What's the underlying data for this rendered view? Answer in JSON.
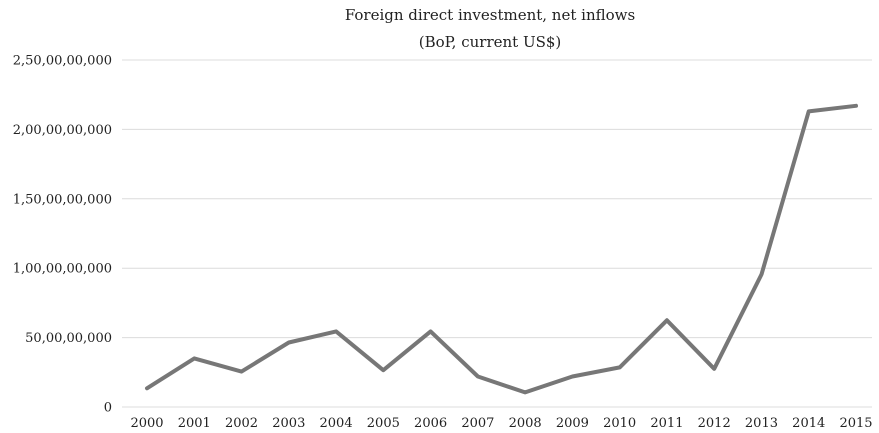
{
  "chart_data": {
    "type": "line",
    "title": "Foreign direct investment, net inflows",
    "subtitle": "(BoP, current US$)",
    "xlabel": "",
    "ylabel": "",
    "categories": [
      "2000",
      "2001",
      "2002",
      "2003",
      "2004",
      "2005",
      "2006",
      "2007",
      "2008",
      "2009",
      "2010",
      "2011",
      "2012",
      "2013",
      "2014",
      "2015"
    ],
    "series": [
      {
        "values": [
          135000000,
          350000000,
          255000000,
          465000000,
          545000000,
          265000000,
          545000000,
          220000000,
          105000000,
          220000000,
          285000000,
          625000000,
          275000000,
          955000000,
          2130000000,
          2170000000
        ],
        "color": "#777777"
      }
    ],
    "ylim": [
      0,
      2500000000
    ],
    "yticks": [
      {
        "value": 0,
        "label": "0"
      },
      {
        "value": 500000000,
        "label": "50,00,00,000"
      },
      {
        "value": 1000000000,
        "label": "1,00,00,00,000"
      },
      {
        "value": 1500000000,
        "label": "1,50,00,00,000"
      },
      {
        "value": 2000000000,
        "label": "2,00,00,00,000"
      },
      {
        "value": 2500000000,
        "label": "2,50,00,00,000"
      }
    ],
    "grid": true,
    "gridline_color": "#dcdcdc",
    "legend": "none"
  }
}
